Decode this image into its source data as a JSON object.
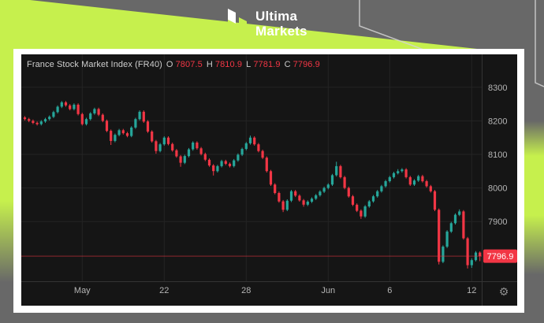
{
  "brand": {
    "line1": "Ultima",
    "line2": "Markets"
  },
  "chart_header": {
    "instrument": "France Stock Market Index (FR40)",
    "ohlc": [
      {
        "label": "O",
        "value": "7807.5"
      },
      {
        "label": "H",
        "value": "7810.9"
      },
      {
        "label": "L",
        "value": "7781.9"
      },
      {
        "label": "C",
        "value": "7796.9"
      }
    ]
  },
  "icons": {
    "settings_glyph": "⚙"
  },
  "colors": {
    "background_gray": "#686868",
    "accent_lime": "#c6f04d",
    "card_white": "#ffffff",
    "chart_bg": "#151515",
    "up": "#26a69a",
    "down": "#f23645",
    "last_price_bg": "#f23645",
    "last_price_text": "#ffffff",
    "axis_text": "#b5b5b5",
    "grid": "#242424",
    "axis_separator": "#343434",
    "price_line": "#f23645"
  },
  "chart_data": {
    "type": "candlestick",
    "title": "France Stock Market Index (FR40)",
    "current_ohlc": {
      "open": 7807.5,
      "high": 7810.9,
      "low": 7781.9,
      "close": 7796.9
    },
    "last_price": 7796.9,
    "last_price_label": "7796.9",
    "y_ticks": [
      8300,
      8200,
      8100,
      8000,
      7900
    ],
    "ylim": [
      7722,
      8398
    ],
    "x_ticks": [
      {
        "label": "May",
        "index": 14
      },
      {
        "label": "22",
        "index": 34
      },
      {
        "label": "28",
        "index": 54
      },
      {
        "label": "Jun",
        "index": 74
      },
      {
        "label": "6",
        "index": 89
      },
      {
        "label": "12",
        "index": 109
      }
    ],
    "candles": [
      [
        8210,
        8214,
        8201,
        8205
      ],
      [
        8205,
        8209,
        8196,
        8200
      ],
      [
        8200,
        8204,
        8190,
        8194
      ],
      [
        8194,
        8198,
        8186,
        8190
      ],
      [
        8190,
        8202,
        8186,
        8198
      ],
      [
        8198,
        8209,
        8194,
        8205
      ],
      [
        8205,
        8216,
        8201,
        8212
      ],
      [
        8212,
        8230,
        8208,
        8226
      ],
      [
        8226,
        8246,
        8222,
        8242
      ],
      [
        8242,
        8259,
        8238,
        8255
      ],
      [
        8255,
        8259,
        8242,
        8246
      ],
      [
        8246,
        8250,
        8231,
        8235
      ],
      [
        8235,
        8252,
        8231,
        8248
      ],
      [
        8248,
        8252,
        8216,
        8220
      ],
      [
        8220,
        8224,
        8186,
        8190
      ],
      [
        8190,
        8209,
        8186,
        8205
      ],
      [
        8205,
        8226,
        8201,
        8222
      ],
      [
        8222,
        8239,
        8218,
        8235
      ],
      [
        8235,
        8239,
        8214,
        8218
      ],
      [
        8218,
        8222,
        8196,
        8200
      ],
      [
        8200,
        8204,
        8166,
        8170
      ],
      [
        8170,
        8174,
        8128,
        8140
      ],
      [
        8140,
        8162,
        8136,
        8158
      ],
      [
        8158,
        8176,
        8154,
        8172
      ],
      [
        8172,
        8176,
        8159,
        8163
      ],
      [
        8163,
        8167,
        8151,
        8155
      ],
      [
        8155,
        8184,
        8151,
        8180
      ],
      [
        8180,
        8209,
        8176,
        8205
      ],
      [
        8205,
        8231,
        8201,
        8227
      ],
      [
        8227,
        8231,
        8194,
        8198
      ],
      [
        8198,
        8202,
        8164,
        8168
      ],
      [
        8168,
        8172,
        8135,
        8139
      ],
      [
        8139,
        8143,
        8102,
        8110
      ],
      [
        8110,
        8134,
        8106,
        8130
      ],
      [
        8130,
        8154,
        8126,
        8150
      ],
      [
        8150,
        8154,
        8127,
        8131
      ],
      [
        8131,
        8135,
        8108,
        8112
      ],
      [
        8112,
        8116,
        8090,
        8094
      ],
      [
        8094,
        8098,
        8063,
        8075
      ],
      [
        8075,
        8099,
        8071,
        8095
      ],
      [
        8095,
        8119,
        8091,
        8115
      ],
      [
        8115,
        8139,
        8111,
        8135
      ],
      [
        8135,
        8139,
        8114,
        8118
      ],
      [
        8118,
        8122,
        8097,
        8101
      ],
      [
        8101,
        8105,
        8080,
        8084
      ],
      [
        8084,
        8088,
        8063,
        8067
      ],
      [
        8067,
        8071,
        8037,
        8050
      ],
      [
        8050,
        8069,
        8046,
        8065
      ],
      [
        8065,
        8084,
        8061,
        8080
      ],
      [
        8080,
        8084,
        8068,
        8072
      ],
      [
        8072,
        8076,
        8061,
        8065
      ],
      [
        8065,
        8086,
        8061,
        8082
      ],
      [
        8082,
        8103,
        8078,
        8099
      ],
      [
        8099,
        8120,
        8095,
        8116
      ],
      [
        8116,
        8137,
        8112,
        8133
      ],
      [
        8133,
        8156,
        8129,
        8150
      ],
      [
        8150,
        8154,
        8126,
        8130
      ],
      [
        8130,
        8134,
        8106,
        8110
      ],
      [
        8110,
        8114,
        8086,
        8090
      ],
      [
        8090,
        8094,
        8046,
        8050
      ],
      [
        8050,
        8054,
        8006,
        8010
      ],
      [
        8010,
        8014,
        7981,
        7985
      ],
      [
        7985,
        7989,
        7956,
        7960
      ],
      [
        7960,
        7964,
        7928,
        7935
      ],
      [
        7935,
        7966,
        7931,
        7962
      ],
      [
        7962,
        7994,
        7958,
        7990
      ],
      [
        7990,
        7994,
        7973,
        7977
      ],
      [
        7977,
        7981,
        7959,
        7963
      ],
      [
        7963,
        7967,
        7944,
        7950
      ],
      [
        7950,
        7963,
        7946,
        7959
      ],
      [
        7959,
        7972,
        7955,
        7968
      ],
      [
        7968,
        7982,
        7964,
        7978
      ],
      [
        7978,
        7993,
        7974,
        7989
      ],
      [
        7989,
        8004,
        7985,
        8000
      ],
      [
        8000,
        8014,
        7996,
        8010
      ],
      [
        8010,
        8042,
        8006,
        8038
      ],
      [
        8038,
        8078,
        8034,
        8065
      ],
      [
        8065,
        8069,
        8028,
        8032
      ],
      [
        8032,
        8036,
        7996,
        8000
      ],
      [
        8000,
        8004,
        7971,
        7975
      ],
      [
        7975,
        7979,
        7946,
        7950
      ],
      [
        7950,
        7954,
        7928,
        7932
      ],
      [
        7932,
        7936,
        7908,
        7915
      ],
      [
        7915,
        7949,
        7911,
        7945
      ],
      [
        7945,
        7964,
        7941,
        7960
      ],
      [
        7960,
        7979,
        7956,
        7975
      ],
      [
        7975,
        7994,
        7971,
        7990
      ],
      [
        7990,
        8009,
        7986,
        8005
      ],
      [
        8005,
        8024,
        8001,
        8020
      ],
      [
        8020,
        8036,
        8016,
        8032
      ],
      [
        8032,
        8048,
        8028,
        8044
      ],
      [
        8044,
        8056,
        8040,
        8050
      ],
      [
        8050,
        8059,
        8046,
        8055
      ],
      [
        8055,
        8059,
        8028,
        8032
      ],
      [
        8032,
        8036,
        8006,
        8010
      ],
      [
        8010,
        8026,
        8006,
        8022
      ],
      [
        8022,
        8039,
        8018,
        8035
      ],
      [
        8035,
        8039,
        8016,
        8020
      ],
      [
        8020,
        8024,
        8001,
        8005
      ],
      [
        8005,
        8009,
        7986,
        7990
      ],
      [
        7990,
        7994,
        7931,
        7935
      ],
      [
        7935,
        7939,
        7772,
        7780
      ],
      [
        7780,
        7829,
        7776,
        7825
      ],
      [
        7825,
        7874,
        7821,
        7870
      ],
      [
        7870,
        7899,
        7866,
        7895
      ],
      [
        7895,
        7924,
        7891,
        7920
      ],
      [
        7920,
        7936,
        7916,
        7930
      ],
      [
        7930,
        7934,
        7846,
        7850
      ],
      [
        7850,
        7854,
        7760,
        7770
      ],
      [
        7770,
        7790,
        7762,
        7785
      ],
      [
        7785,
        7812,
        7781,
        7807.5
      ],
      [
        7807.5,
        7810.9,
        7781.9,
        7796.9
      ]
    ]
  }
}
